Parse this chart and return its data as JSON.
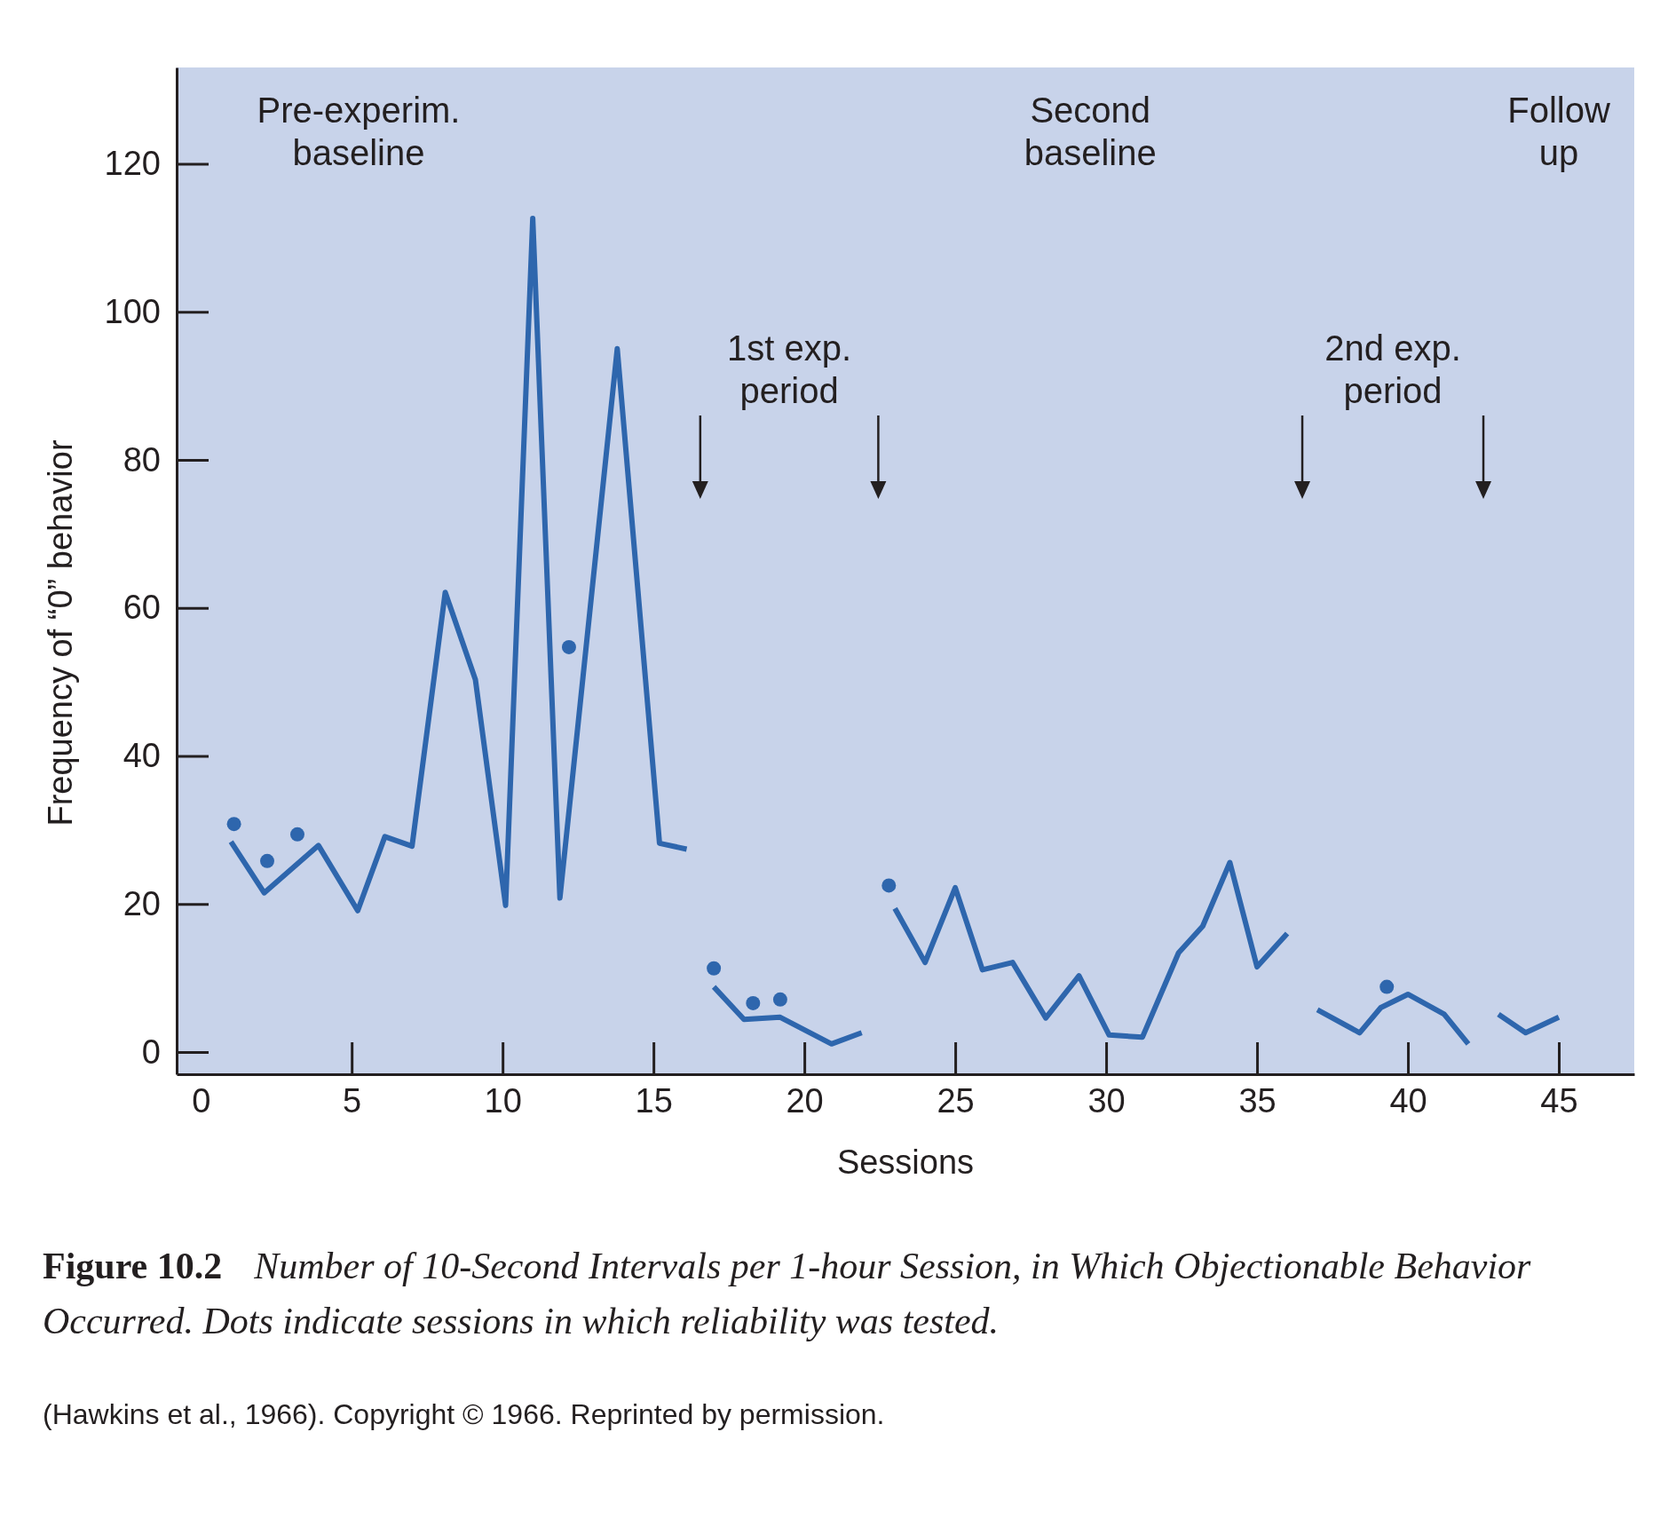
{
  "chart_data": {
    "type": "line",
    "title": "Figure 10.2",
    "subtitle": "Number of 10-Second Intervals per 1-hour Session, in Which Objectionable Behavior Occurred. Dots indicate sessions in which reliability was tested.",
    "xlabel": "Sessions",
    "ylabel": "Frequency of “0” behavior",
    "xlim": [
      -0.8,
      47.5
    ],
    "xticks": [
      0,
      5,
      10,
      15,
      20,
      25,
      30,
      35,
      40,
      45
    ],
    "ylim": [
      -3,
      133
    ],
    "yticks": [
      0,
      20,
      40,
      60,
      80,
      100,
      120
    ],
    "series": [
      {
        "color": "#2e66ad",
        "x": [
          1.0,
          2.1,
          3.9,
          5.2,
          6.1,
          7.0,
          8.1,
          9.1,
          10.1,
          11.0,
          11.9,
          13.8,
          15.2,
          16.1
        ],
        "values": [
          28.4,
          21.5,
          27.9,
          19.1,
          29.1,
          27.8,
          62.1,
          50.3,
          19.8,
          112.6,
          20.8,
          95.0,
          28.2,
          27.4
        ]
      },
      {
        "color": "#2e66ad",
        "x": [
          17.0,
          18.0,
          19.2,
          20.9,
          21.9
        ],
        "values": [
          8.8,
          4.4,
          4.7,
          1.1,
          2.6
        ]
      },
      {
        "color": "#2e66ad",
        "x": [
          23.0,
          24.0,
          25.0,
          25.9,
          26.9,
          28.0,
          29.1,
          30.1,
          31.2,
          32.4,
          33.2,
          34.1,
          35.0,
          36.0
        ],
        "values": [
          19.4,
          12.1,
          22.2,
          11.1,
          12.1,
          4.6,
          10.3,
          2.3,
          2.0,
          13.4,
          17.0,
          25.6,
          11.5,
          16.0
        ]
      },
      {
        "color": "#2e66ad",
        "x": [
          37.0,
          38.4,
          39.1,
          40.0,
          41.2,
          42.0
        ],
        "values": [
          5.7,
          2.6,
          6.0,
          7.8,
          5.1,
          1.1
        ]
      },
      {
        "color": "#2e66ad",
        "x": [
          43.0,
          43.9,
          45.0
        ],
        "values": [
          5.1,
          2.6,
          4.7
        ]
      },
      {
        "type": "scatter",
        "color": "#2e66ad",
        "marker": "circle",
        "x": [
          1.1,
          2.2,
          3.2,
          12.2,
          17.0,
          18.3,
          19.2,
          22.8,
          39.3
        ],
        "values": [
          30.8,
          25.8,
          29.4,
          54.7,
          11.3,
          6.6,
          7.1,
          22.5,
          8.8
        ]
      }
    ],
    "annotations": [
      "Pre-experim.\nbaseline",
      "1st exp.\nperiod",
      "Second\nbaseline",
      "2nd exp.\nperiod",
      "Follow\nup",
      "(Hawkins et al., 1966). Copyright © 1966. Reprinted by permission."
    ]
  }
}
